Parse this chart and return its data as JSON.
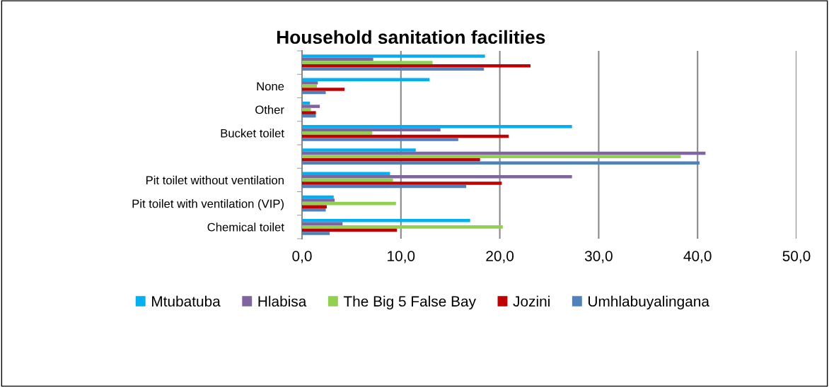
{
  "chart_data": {
    "type": "bar",
    "orientation": "horizontal",
    "title": "Household sanitation facilities",
    "categories": [
      null,
      "None",
      "Other",
      "Bucket toilet",
      null,
      "Pit toilet without ventilation",
      "Pit toilet with ventilation (VIP)",
      "Chemical toilet"
    ],
    "series": [
      {
        "name": "Mtubatuba",
        "color": "#00b0f0",
        "values": [
          18.5,
          12.9,
          0.8,
          27.3,
          11.5,
          8.9,
          3.2,
          17.0
        ]
      },
      {
        "name": "Hlabisa",
        "color": "#8064a2",
        "values": [
          7.2,
          1.6,
          1.8,
          14.0,
          40.8,
          27.3,
          3.3,
          4.1
        ]
      },
      {
        "name": "The Big 5 False Bay",
        "color": "#92d050",
        "values": [
          13.2,
          1.5,
          0.9,
          7.1,
          38.3,
          9.2,
          9.5,
          20.3
        ]
      },
      {
        "name": "Jozini",
        "color": "#c00000",
        "values": [
          23.1,
          4.3,
          1.4,
          20.9,
          18.0,
          20.2,
          2.5,
          9.6
        ]
      },
      {
        "name": "Umhlabuyalingana",
        "color": "#4f81bd",
        "values": [
          18.4,
          2.4,
          1.4,
          15.8,
          40.2,
          16.6,
          2.4,
          2.8
        ]
      }
    ],
    "xlim": [
      0,
      50
    ],
    "xticks": [
      {
        "value": 0,
        "label": "0,0"
      },
      {
        "value": 10,
        "label": "10,0"
      },
      {
        "value": 20,
        "label": "20,0"
      },
      {
        "value": 30,
        "label": "30,0"
      },
      {
        "value": 40,
        "label": "40,0"
      },
      {
        "value": 50,
        "label": "50,0"
      }
    ],
    "grid": "x",
    "legend": "bottom"
  }
}
